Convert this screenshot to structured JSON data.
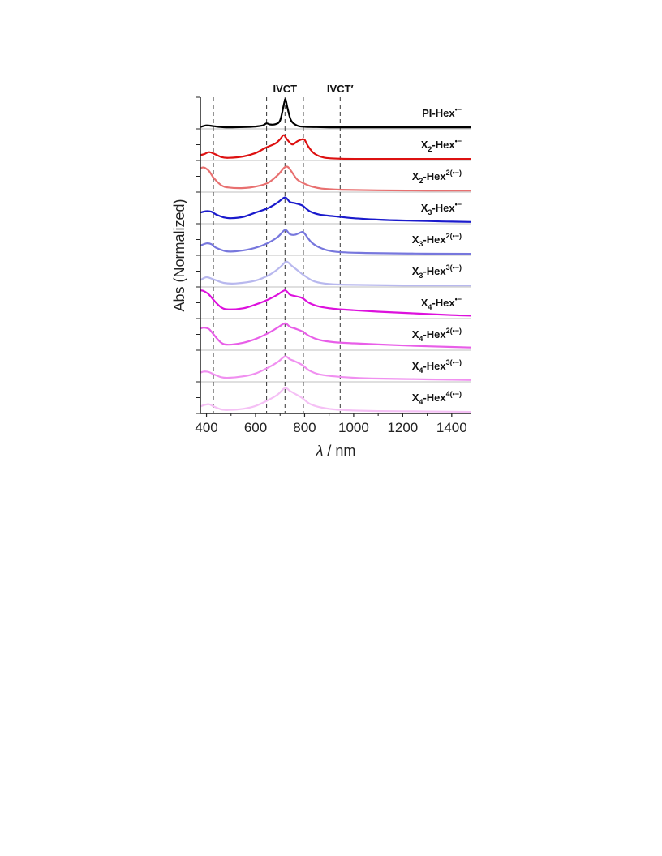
{
  "chart_data": {
    "type": "line",
    "xlabel": "λ / nm",
    "ylabel": "Abs (Normalized)",
    "xlim": [
      375,
      1480
    ],
    "x_ticks": [
      400,
      600,
      800,
      1000,
      1200,
      1400
    ],
    "stacked": true,
    "grid": false,
    "top_annotations": [
      "IVCT",
      "IVCT′"
    ],
    "reference_lines_nm": [
      428,
      645,
      720,
      795,
      945
    ],
    "series": [
      {
        "name": "PI-Hex•−",
        "label_main": "PI-Hex",
        "label_sub": "",
        "label_sup": "•−",
        "color": "#000000",
        "x": [
          375,
          400,
          430,
          480,
          550,
          600,
          630,
          645,
          660,
          680,
          700,
          715,
          722,
          730,
          745,
          770,
          800,
          850,
          900,
          1000,
          1200,
          1400,
          1480
        ],
        "y": [
          0.02,
          0.08,
          0.05,
          0.01,
          0.02,
          0.04,
          0.08,
          0.15,
          0.11,
          0.12,
          0.25,
          0.8,
          1.0,
          0.7,
          0.25,
          0.07,
          0.03,
          0.02,
          0.01,
          0.01,
          0.01,
          0.01,
          0.01
        ]
      },
      {
        "name": "X2-Hex•−",
        "label_main": "X",
        "label_sub": "2",
        "label_mid": "-Hex",
        "label_sup": "•−",
        "color": "#dd1111",
        "x": [
          375,
          390,
          410,
          430,
          460,
          490,
          550,
          600,
          640,
          680,
          700,
          715,
          730,
          750,
          770,
          790,
          800,
          815,
          840,
          880,
          950,
          1100,
          1300,
          1480
        ],
        "y": [
          0.15,
          0.18,
          0.25,
          0.2,
          0.08,
          0.05,
          0.1,
          0.22,
          0.4,
          0.55,
          0.7,
          0.85,
          0.68,
          0.52,
          0.63,
          0.7,
          0.68,
          0.45,
          0.2,
          0.06,
          0.02,
          0.01,
          0.01,
          0.01
        ]
      },
      {
        "name": "X2-Hex2(•−)",
        "label_main": "X",
        "label_sub": "2",
        "label_mid": "-Hex",
        "label_sup": "2(•−)",
        "color": "#e87070",
        "x": [
          375,
          390,
          410,
          430,
          460,
          490,
          550,
          600,
          650,
          690,
          715,
          730,
          745,
          770,
          800,
          830,
          870,
          950,
          1100,
          1300,
          1480
        ],
        "y": [
          0.8,
          0.82,
          0.7,
          0.45,
          0.2,
          0.12,
          0.1,
          0.15,
          0.28,
          0.55,
          0.8,
          0.85,
          0.7,
          0.4,
          0.25,
          0.15,
          0.08,
          0.04,
          0.02,
          0.01,
          0.01
        ]
      },
      {
        "name": "X3-Hex•−",
        "label_main": "X",
        "label_sub": "3",
        "label_mid": "-Hex",
        "label_sup": "•−",
        "color": "#1a1acc",
        "x": [
          375,
          400,
          420,
          440,
          470,
          500,
          550,
          600,
          650,
          690,
          720,
          740,
          760,
          790,
          820,
          860,
          920,
          1000,
          1100,
          1200,
          1300,
          1400,
          1480
        ],
        "y": [
          0.35,
          0.4,
          0.38,
          0.28,
          0.18,
          0.15,
          0.2,
          0.35,
          0.5,
          0.7,
          0.88,
          0.72,
          0.68,
          0.6,
          0.4,
          0.28,
          0.22,
          0.15,
          0.1,
          0.07,
          0.05,
          0.03,
          0.02
        ]
      },
      {
        "name": "X3-Hex2(•−)",
        "label_main": "X",
        "label_sub": "3",
        "label_mid": "-Hex",
        "label_sup": "2(•−)",
        "color": "#7777dd",
        "x": [
          375,
          400,
          420,
          440,
          480,
          520,
          580,
          640,
          690,
          720,
          740,
          760,
          790,
          800,
          830,
          870,
          930,
          1050,
          1250,
          1480
        ],
        "y": [
          0.3,
          0.38,
          0.35,
          0.22,
          0.1,
          0.1,
          0.18,
          0.35,
          0.6,
          0.85,
          0.7,
          0.68,
          0.78,
          0.72,
          0.4,
          0.2,
          0.08,
          0.04,
          0.02,
          0.01
        ]
      },
      {
        "name": "X3-Hex3(•−)",
        "label_main": "X",
        "label_sub": "3",
        "label_mid": "-Hex",
        "label_sup": "3(•−)",
        "color": "#b8b8ee",
        "x": [
          375,
          400,
          430,
          470,
          520,
          600,
          660,
          700,
          725,
          745,
          770,
          800,
          840,
          900,
          1000,
          1200,
          1480
        ],
        "y": [
          0.2,
          0.3,
          0.22,
          0.1,
          0.08,
          0.18,
          0.4,
          0.65,
          0.85,
          0.72,
          0.55,
          0.35,
          0.15,
          0.06,
          0.03,
          0.01,
          0.01
        ]
      },
      {
        "name": "X4-Hex•−",
        "label_main": "X",
        "label_sub": "4",
        "label_mid": "-Hex",
        "label_sup": "•−",
        "color": "#dd11dd",
        "x": [
          375,
          390,
          410,
          430,
          460,
          490,
          550,
          600,
          650,
          690,
          720,
          740,
          760,
          790,
          820,
          860,
          920,
          1000,
          1100,
          1250,
          1400,
          1480
        ],
        "y": [
          0.95,
          0.92,
          0.8,
          0.6,
          0.35,
          0.28,
          0.32,
          0.45,
          0.62,
          0.8,
          0.95,
          0.8,
          0.75,
          0.68,
          0.5,
          0.38,
          0.3,
          0.25,
          0.2,
          0.14,
          0.08,
          0.06
        ]
      },
      {
        "name": "X4-Hex2(•−)",
        "label_main": "X",
        "label_sub": "4",
        "label_mid": "-Hex",
        "label_sup": "2(•−)",
        "color": "#e85ee8",
        "x": [
          375,
          390,
          410,
          430,
          460,
          490,
          550,
          600,
          650,
          690,
          720,
          740,
          760,
          790,
          820,
          860,
          920,
          1000,
          1100,
          1250,
          1400,
          1480
        ],
        "y": [
          0.72,
          0.75,
          0.7,
          0.5,
          0.22,
          0.15,
          0.22,
          0.35,
          0.55,
          0.75,
          0.9,
          0.78,
          0.72,
          0.62,
          0.45,
          0.32,
          0.24,
          0.2,
          0.16,
          0.11,
          0.07,
          0.05
        ]
      },
      {
        "name": "X4-Hex3(•−)",
        "label_main": "X",
        "label_sub": "4",
        "label_mid": "-Hex",
        "label_sup": "3(•−)",
        "color": "#f090f0",
        "x": [
          375,
          390,
          410,
          430,
          460,
          490,
          550,
          600,
          650,
          690,
          720,
          740,
          760,
          790,
          820,
          860,
          920,
          1000,
          1100,
          1250,
          1400,
          1480
        ],
        "y": [
          0.28,
          0.32,
          0.3,
          0.22,
          0.12,
          0.1,
          0.15,
          0.25,
          0.45,
          0.65,
          0.85,
          0.75,
          0.68,
          0.55,
          0.35,
          0.22,
          0.15,
          0.1,
          0.07,
          0.05,
          0.03,
          0.02
        ]
      },
      {
        "name": "X4-Hex4(•−)",
        "label_main": "X",
        "label_sub": "4",
        "label_mid": "-Hex",
        "label_sup": "4(•−)",
        "color": "#f5c0f5",
        "x": [
          375,
          390,
          410,
          430,
          460,
          490,
          550,
          600,
          650,
          690,
          720,
          740,
          760,
          790,
          820,
          860,
          920,
          1000,
          1100,
          1250,
          1400,
          1480
        ],
        "y": [
          0.2,
          0.25,
          0.28,
          0.2,
          0.1,
          0.08,
          0.12,
          0.22,
          0.42,
          0.62,
          0.85,
          0.75,
          0.65,
          0.5,
          0.3,
          0.18,
          0.1,
          0.06,
          0.04,
          0.03,
          0.02,
          0.01
        ]
      }
    ]
  }
}
